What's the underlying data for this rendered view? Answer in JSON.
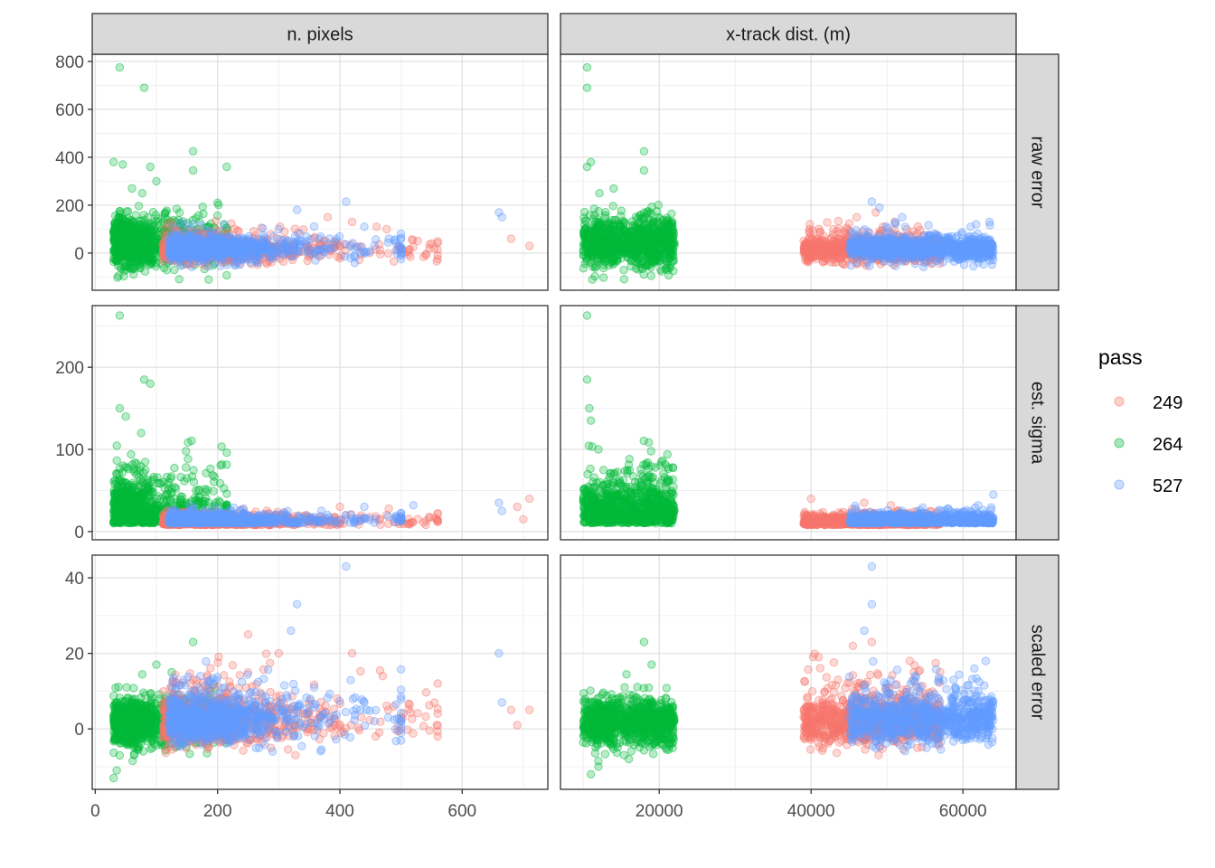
{
  "chart_data": {
    "type": "scatter",
    "facets": {
      "columns": [
        "n. pixels",
        "x-track dist. (m)"
      ],
      "rows": [
        "raw error",
        "est. sigma",
        "scaled error"
      ]
    },
    "x_axes": [
      {
        "column": "n. pixels",
        "range": [
          -5,
          740
        ],
        "ticks": [
          0,
          200,
          400,
          600
        ],
        "tick_labels": [
          "0",
          "200",
          "400",
          "600"
        ]
      },
      {
        "column": "x-track dist. (m)",
        "range": [
          7000,
          67000
        ],
        "ticks": [
          20000,
          40000,
          60000
        ],
        "tick_labels": [
          "20000",
          "40000",
          "60000"
        ]
      }
    ],
    "y_axes": [
      {
        "row": "raw error",
        "range": [
          -155,
          830
        ],
        "ticks": [
          0,
          200,
          400,
          600,
          800
        ],
        "tick_labels": [
          "0",
          "200",
          "400",
          "600",
          "800"
        ]
      },
      {
        "row": "est. sigma",
        "range": [
          -10,
          275
        ],
        "ticks": [
          0,
          100,
          200
        ],
        "tick_labels": [
          "0",
          "100",
          "200"
        ]
      },
      {
        "row": "scaled error",
        "range": [
          -16,
          46
        ],
        "ticks": [
          0,
          20,
          40
        ],
        "tick_labels": [
          "0",
          "20",
          "40"
        ]
      }
    ],
    "legend": {
      "title": "pass",
      "placement": "right",
      "entries": [
        {
          "label": "249",
          "color": "#F8766D"
        },
        {
          "label": "264",
          "color": "#00BA38"
        },
        {
          "label": "527",
          "color": "#619CFF"
        }
      ]
    },
    "series": [
      {
        "label": "249",
        "color": "#F8766D",
        "npix_range": [
          110,
          710
        ],
        "xtrack_range": [
          39000,
          57000
        ],
        "highlight_points": {
          "raw_npix": [
            [
              380,
              150
            ],
            [
              420,
              130
            ],
            [
              460,
              110
            ],
            [
              520,
              25
            ],
            [
              550,
              40
            ],
            [
              680,
              60
            ],
            [
              710,
              30
            ]
          ],
          "raw_xtrack": [
            [
              46000,
              150
            ],
            [
              48500,
              170
            ],
            [
              51000,
              130
            ]
          ],
          "sigma_npix": [
            [
              400,
              30
            ],
            [
              480,
              28
            ],
            [
              560,
              22
            ],
            [
              690,
              30
            ],
            [
              710,
              40
            ],
            [
              700,
              15
            ]
          ],
          "sigma_xtrack": [
            [
              40000,
              40
            ],
            [
              47000,
              35
            ],
            [
              50500,
              32
            ]
          ],
          "scaled_npix": [
            [
              250,
              25
            ],
            [
              300,
              20
            ],
            [
              420,
              20
            ],
            [
              470,
              14
            ],
            [
              560,
              12
            ],
            [
              680,
              5
            ],
            [
              710,
              5
            ],
            [
              690,
              1
            ]
          ],
          "scaled_xtrack": [
            [
              41000,
              19
            ],
            [
              45500,
              22
            ],
            [
              48000,
              23
            ],
            [
              53000,
              18
            ],
            [
              57000,
              15
            ]
          ]
        }
      },
      {
        "label": "264",
        "color": "#00BA38",
        "npix_range": [
          25,
          215
        ],
        "xtrack_range": [
          10000,
          22000
        ],
        "highlight_points": {
          "raw_npix": [
            [
              40,
              775
            ],
            [
              80,
              690
            ],
            [
              30,
              380
            ],
            [
              45,
              370
            ],
            [
              90,
              360
            ],
            [
              160,
              425
            ],
            [
              160,
              345
            ],
            [
              215,
              360
            ],
            [
              200,
              210
            ],
            [
              100,
              300
            ],
            [
              60,
              270
            ]
          ],
          "raw_xtrack": [
            [
              10500,
              775
            ],
            [
              10500,
              690
            ],
            [
              11000,
              380
            ],
            [
              10500,
              360
            ],
            [
              18000,
              425
            ],
            [
              18000,
              345
            ],
            [
              14000,
              270
            ]
          ],
          "sigma_npix": [
            [
              40,
              263
            ],
            [
              80,
              185
            ],
            [
              90,
              180
            ],
            [
              40,
              150
            ],
            [
              50,
              140
            ],
            [
              75,
              120
            ],
            [
              215,
              96
            ],
            [
              150,
              65
            ],
            [
              120,
              60
            ]
          ],
          "sigma_xtrack": [
            [
              10500,
              263
            ],
            [
              10500,
              185
            ],
            [
              10800,
              150
            ],
            [
              11000,
              135
            ],
            [
              12000,
              100
            ],
            [
              14000,
              70
            ]
          ],
          "scaled_npix": [
            [
              160,
              23
            ],
            [
              100,
              17
            ],
            [
              125,
              15
            ],
            [
              35,
              -11
            ],
            [
              30,
              -13
            ],
            [
              40,
              -7
            ]
          ],
          "scaled_xtrack": [
            [
              18000,
              23
            ],
            [
              19000,
              17
            ],
            [
              11000,
              -12
            ],
            [
              12000,
              -10
            ],
            [
              16000,
              -8
            ]
          ]
        }
      },
      {
        "label": "527",
        "color": "#619CFF",
        "npix_range": [
          110,
          665
        ],
        "xtrack_range": [
          45000,
          64000
        ],
        "highlight_points": {
          "raw_npix": [
            [
              410,
              215
            ],
            [
              330,
              180
            ],
            [
              440,
              110
            ],
            [
              480,
              60
            ],
            [
              660,
              170
            ],
            [
              665,
              150
            ],
            [
              300,
              100
            ]
          ],
          "raw_xtrack": [
            [
              48000,
              215
            ],
            [
              49000,
              190
            ],
            [
              52000,
              150
            ],
            [
              63500,
              130
            ],
            [
              61000,
              110
            ]
          ],
          "sigma_npix": [
            [
              440,
              30
            ],
            [
              520,
              32
            ],
            [
              660,
              35
            ],
            [
              665,
              25
            ]
          ],
          "sigma_xtrack": [
            [
              64000,
              45
            ],
            [
              62000,
              32
            ],
            [
              58000,
              28
            ]
          ],
          "scaled_npix": [
            [
              410,
              43
            ],
            [
              330,
              33
            ],
            [
              320,
              26
            ],
            [
              660,
              20
            ],
            [
              665,
              7
            ],
            [
              440,
              7
            ],
            [
              290,
              -6
            ]
          ],
          "scaled_xtrack": [
            [
              48000,
              43
            ],
            [
              48000,
              33
            ],
            [
              47000,
              26
            ],
            [
              63000,
              18
            ],
            [
              61500,
              16
            ],
            [
              62000,
              10
            ]
          ]
        }
      }
    ]
  }
}
